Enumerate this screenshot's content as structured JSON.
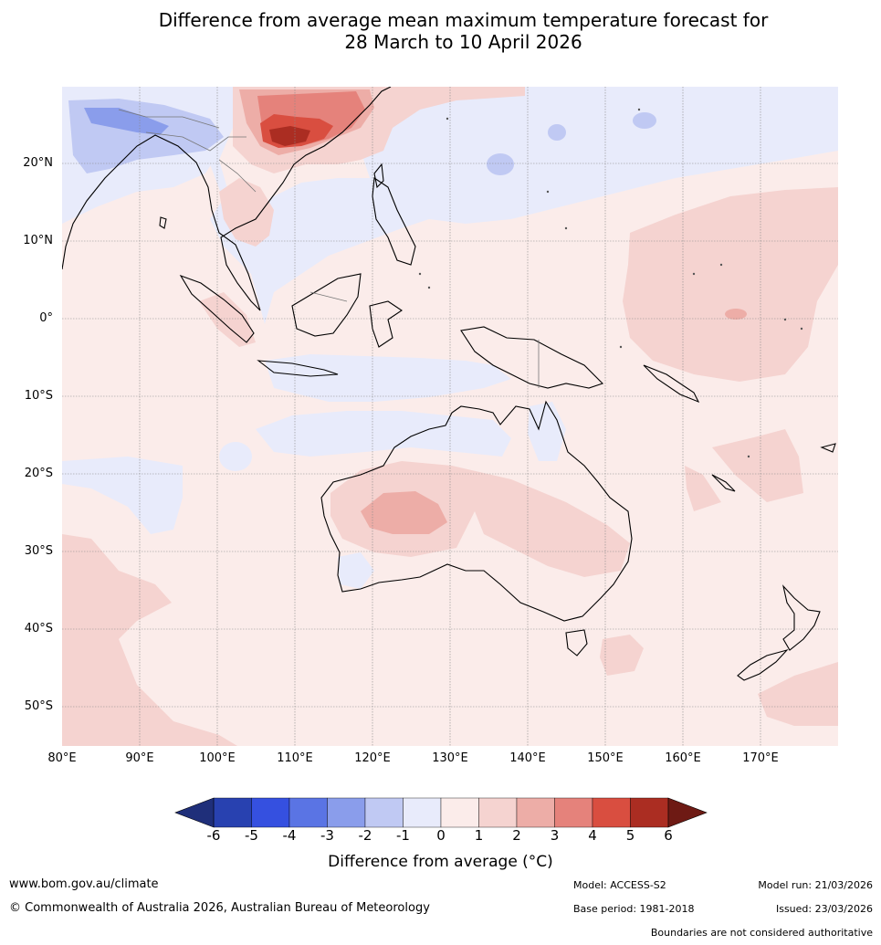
{
  "title": {
    "line1": "Difference from average mean maximum temperature forecast for",
    "line2": "28 March to 10 April 2026"
  },
  "map": {
    "lat_labels": [
      "20°N",
      "10°N",
      "0°",
      "10°S",
      "20°S",
      "30°S",
      "40°S",
      "50°S"
    ],
    "lon_labels": [
      "80°E",
      "90°E",
      "100°E",
      "110°E",
      "120°E",
      "130°E",
      "140°E",
      "150°E",
      "160°E",
      "170°E"
    ],
    "lat_range": [
      -55,
      30
    ],
    "lon_range": [
      80,
      180
    ]
  },
  "colorbar": {
    "ticks": [
      "-6",
      "-5",
      "-4",
      "-3",
      "-2",
      "-1",
      "0",
      "1",
      "2",
      "3",
      "4",
      "5",
      "6"
    ],
    "title": "Difference from average (°C)",
    "under_color": "#1f2f7a",
    "over_color": "#6e1a14",
    "colors": [
      "#2841b0",
      "#3550e0",
      "#5a74e4",
      "#8a9deb",
      "#c0c9f3",
      "#e8ebfb",
      "#fbecea",
      "#f5d3d0",
      "#edada7",
      "#e5827b",
      "#d94e40",
      "#ab2d22"
    ]
  },
  "footer": {
    "website": "www.bom.gov.au/climate",
    "copyright": "© Commonwealth of Australia 2026, Australian Bureau of Meteorology",
    "model": "Model: ACCESS-S2",
    "base_period": "Base period: 1981-2018",
    "model_run": "Model run: 21/03/2026",
    "issued": "Issued: 23/03/2026",
    "disclaimer": "Boundaries are not considered authoritative"
  }
}
